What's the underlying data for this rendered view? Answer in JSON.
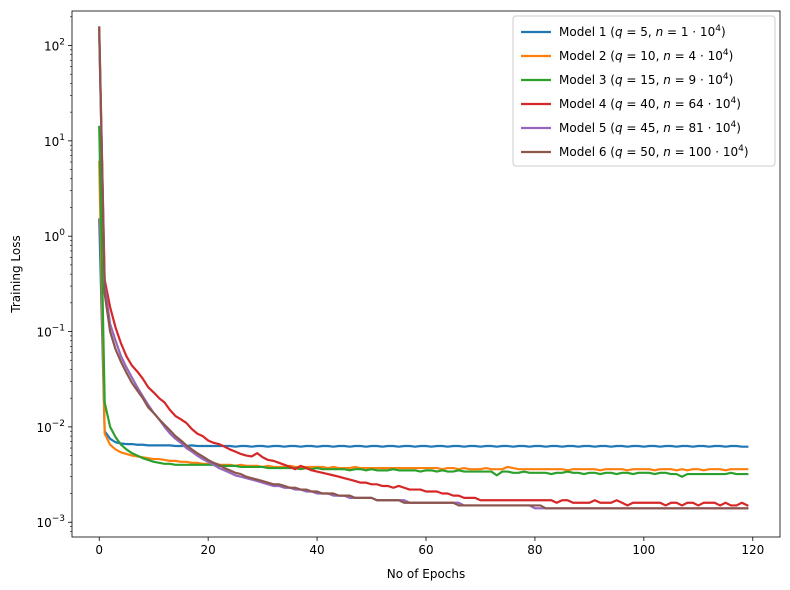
{
  "chart_data": {
    "type": "line",
    "title": "",
    "xlabel": "No of Epochs",
    "ylabel": "Training Loss",
    "yscale": "log",
    "xlim": [
      -5,
      125
    ],
    "ylim": [
      0.0007,
      230
    ],
    "x_ticks": [
      0,
      20,
      40,
      60,
      80,
      100,
      120
    ],
    "y_ticks": [
      {
        "value": 0.001,
        "base": "10",
        "exp": "−3"
      },
      {
        "value": 0.01,
        "base": "10",
        "exp": "−2"
      },
      {
        "value": 0.1,
        "base": "10",
        "exp": "−1"
      },
      {
        "value": 1,
        "base": "10",
        "exp": "0"
      },
      {
        "value": 10,
        "base": "10",
        "exp": "1"
      },
      {
        "value": 100,
        "base": "10",
        "exp": "2"
      }
    ],
    "legend_position": "top-right",
    "x": [
      0,
      1,
      2,
      3,
      4,
      5,
      6,
      7,
      8,
      9,
      10,
      11,
      12,
      13,
      14,
      15,
      16,
      17,
      18,
      19,
      20,
      21,
      22,
      23,
      24,
      25,
      26,
      27,
      28,
      29,
      30,
      31,
      32,
      33,
      34,
      35,
      36,
      37,
      38,
      39,
      40,
      41,
      42,
      43,
      44,
      45,
      46,
      47,
      48,
      49,
      50,
      51,
      52,
      53,
      54,
      55,
      56,
      57,
      58,
      59,
      60,
      61,
      62,
      63,
      64,
      65,
      66,
      67,
      68,
      69,
      70,
      71,
      72,
      73,
      74,
      75,
      76,
      77,
      78,
      79,
      80,
      81,
      82,
      83,
      84,
      85,
      86,
      87,
      88,
      89,
      90,
      91,
      92,
      93,
      94,
      95,
      96,
      97,
      98,
      99,
      100,
      101,
      102,
      103,
      104,
      105,
      106,
      107,
      108,
      109,
      110,
      111,
      112,
      113,
      114,
      115,
      116,
      117,
      118,
      119
    ],
    "series": [
      {
        "name": "Model 1",
        "legend": {
          "prefix": "Model 1 (",
          "q": "5",
          "n": "1",
          "exp": "4"
        },
        "color": "#1f77b4",
        "values": [
          1.5,
          0.009,
          0.0075,
          0.0069,
          0.0067,
          0.0066,
          0.0066,
          0.0065,
          0.0065,
          0.0064,
          0.0064,
          0.0064,
          0.0064,
          0.0064,
          0.0063,
          0.0063,
          0.0063,
          0.0064,
          0.0063,
          0.0063,
          0.0063,
          0.0063,
          0.0063,
          0.0063,
          0.0063,
          0.0062,
          0.0063,
          0.0063,
          0.0062,
          0.0063,
          0.0063,
          0.0062,
          0.0063,
          0.0063,
          0.0062,
          0.0063,
          0.0063,
          0.0062,
          0.0063,
          0.0063,
          0.0062,
          0.0063,
          0.0063,
          0.0062,
          0.0063,
          0.0063,
          0.0062,
          0.0063,
          0.0063,
          0.0062,
          0.0063,
          0.0063,
          0.0062,
          0.0063,
          0.0063,
          0.0062,
          0.0063,
          0.0063,
          0.0062,
          0.0063,
          0.0063,
          0.0062,
          0.0063,
          0.0063,
          0.0062,
          0.0063,
          0.0063,
          0.0062,
          0.0063,
          0.0063,
          0.0062,
          0.0063,
          0.0063,
          0.0062,
          0.0063,
          0.0063,
          0.0062,
          0.0063,
          0.0063,
          0.0062,
          0.0063,
          0.0063,
          0.0062,
          0.0063,
          0.0063,
          0.0062,
          0.0063,
          0.0063,
          0.0062,
          0.0063,
          0.0063,
          0.0062,
          0.0063,
          0.0063,
          0.0062,
          0.0063,
          0.0063,
          0.0062,
          0.0063,
          0.0063,
          0.0062,
          0.0063,
          0.0063,
          0.0062,
          0.0063,
          0.0063,
          0.0062,
          0.0063,
          0.0063,
          0.0062,
          0.0063,
          0.0063,
          0.0062,
          0.0063,
          0.0063,
          0.0062,
          0.0063,
          0.0063,
          0.0062,
          0.0062
        ]
      },
      {
        "name": "Model 2",
        "legend": {
          "prefix": "Model 2 (",
          "q": "10",
          "n": "4",
          "exp": "4"
        },
        "color": "#ff7f0e",
        "values": [
          6.0,
          0.0085,
          0.0065,
          0.0058,
          0.0054,
          0.0052,
          0.005,
          0.0049,
          0.0048,
          0.0047,
          0.0046,
          0.0046,
          0.0045,
          0.0044,
          0.0044,
          0.0043,
          0.0043,
          0.0042,
          0.0042,
          0.0041,
          0.0041,
          0.0041,
          0.004,
          0.004,
          0.004,
          0.0039,
          0.004,
          0.0039,
          0.0039,
          0.0039,
          0.0038,
          0.0039,
          0.0038,
          0.0038,
          0.0038,
          0.0039,
          0.0038,
          0.0038,
          0.0038,
          0.0038,
          0.0038,
          0.0038,
          0.0037,
          0.0038,
          0.0037,
          0.0037,
          0.0037,
          0.0038,
          0.0037,
          0.0037,
          0.0037,
          0.0037,
          0.0037,
          0.0037,
          0.0037,
          0.0037,
          0.0037,
          0.0037,
          0.0037,
          0.0037,
          0.0037,
          0.0037,
          0.0037,
          0.0036,
          0.0037,
          0.0037,
          0.0036,
          0.0037,
          0.0036,
          0.0036,
          0.0036,
          0.0037,
          0.0036,
          0.0036,
          0.0036,
          0.0038,
          0.0037,
          0.0036,
          0.0036,
          0.0036,
          0.0036,
          0.0036,
          0.0036,
          0.0036,
          0.0036,
          0.0036,
          0.0035,
          0.0036,
          0.0036,
          0.0036,
          0.0036,
          0.0036,
          0.0035,
          0.0036,
          0.0036,
          0.0036,
          0.0036,
          0.0035,
          0.0036,
          0.0036,
          0.0036,
          0.0036,
          0.0035,
          0.0036,
          0.0036,
          0.0036,
          0.0035,
          0.0036,
          0.0035,
          0.0036,
          0.0036,
          0.0035,
          0.0036,
          0.0036,
          0.0036,
          0.0035,
          0.0036,
          0.0036,
          0.0036,
          0.0036
        ]
      },
      {
        "name": "Model 3",
        "legend": {
          "prefix": "Model 3 (",
          "q": "15",
          "n": "9",
          "exp": "4"
        },
        "color": "#2ca02c",
        "values": [
          14.0,
          0.018,
          0.01,
          0.0078,
          0.0065,
          0.0058,
          0.0053,
          0.005,
          0.0047,
          0.0045,
          0.0043,
          0.0042,
          0.0041,
          0.0041,
          0.004,
          0.004,
          0.004,
          0.004,
          0.004,
          0.004,
          0.004,
          0.004,
          0.0039,
          0.0039,
          0.0039,
          0.0039,
          0.0038,
          0.0038,
          0.0038,
          0.0038,
          0.0038,
          0.0037,
          0.0037,
          0.0037,
          0.0037,
          0.0037,
          0.0037,
          0.0036,
          0.0037,
          0.0036,
          0.0037,
          0.0036,
          0.0036,
          0.0036,
          0.0036,
          0.0036,
          0.0035,
          0.0036,
          0.0036,
          0.0035,
          0.0036,
          0.0035,
          0.0035,
          0.0035,
          0.0036,
          0.0035,
          0.0035,
          0.0035,
          0.0035,
          0.0034,
          0.0035,
          0.0035,
          0.0034,
          0.0035,
          0.0034,
          0.0034,
          0.0035,
          0.0034,
          0.0034,
          0.0034,
          0.0034,
          0.0034,
          0.0034,
          0.0031,
          0.0034,
          0.0034,
          0.0033,
          0.0033,
          0.0034,
          0.0033,
          0.0033,
          0.0033,
          0.0033,
          0.0032,
          0.0033,
          0.0033,
          0.0034,
          0.0033,
          0.0033,
          0.0032,
          0.0033,
          0.0033,
          0.0032,
          0.0033,
          0.0033,
          0.0032,
          0.0033,
          0.0033,
          0.0032,
          0.0033,
          0.0033,
          0.0033,
          0.0032,
          0.0033,
          0.0033,
          0.0032,
          0.0032,
          0.003,
          0.0032,
          0.0032,
          0.0032,
          0.0032,
          0.0032,
          0.0032,
          0.0032,
          0.0032,
          0.0033,
          0.0032,
          0.0032,
          0.0032
        ]
      },
      {
        "name": "Model 4",
        "legend": {
          "prefix": "Model 4 (",
          "q": "40",
          "n": "64",
          "exp": "4"
        },
        "color": "#d62728",
        "values": [
          150,
          0.35,
          0.18,
          0.11,
          0.075,
          0.055,
          0.044,
          0.038,
          0.032,
          0.026,
          0.023,
          0.02,
          0.018,
          0.015,
          0.013,
          0.012,
          0.011,
          0.0095,
          0.0085,
          0.008,
          0.0072,
          0.0068,
          0.0066,
          0.0062,
          0.0058,
          0.0055,
          0.0052,
          0.005,
          0.0049,
          0.0053,
          0.0048,
          0.0045,
          0.0044,
          0.0042,
          0.004,
          0.0038,
          0.0036,
          0.0039,
          0.0037,
          0.0035,
          0.0034,
          0.0033,
          0.0032,
          0.0031,
          0.003,
          0.0029,
          0.0028,
          0.0027,
          0.0026,
          0.0026,
          0.0025,
          0.0025,
          0.0024,
          0.0024,
          0.0023,
          0.0024,
          0.0023,
          0.0022,
          0.0022,
          0.0022,
          0.0021,
          0.0021,
          0.0021,
          0.002,
          0.002,
          0.0019,
          0.0019,
          0.0018,
          0.0018,
          0.0018,
          0.0017,
          0.0017,
          0.0017,
          0.0017,
          0.0017,
          0.0017,
          0.0017,
          0.0017,
          0.0017,
          0.0017,
          0.0017,
          0.0017,
          0.0017,
          0.0017,
          0.0016,
          0.0017,
          0.0017,
          0.0016,
          0.0016,
          0.0016,
          0.0016,
          0.0017,
          0.0016,
          0.0016,
          0.0016,
          0.0017,
          0.0016,
          0.0015,
          0.0016,
          0.0016,
          0.0016,
          0.0016,
          0.0016,
          0.0016,
          0.0015,
          0.0016,
          0.0016,
          0.0015,
          0.0016,
          0.0016,
          0.0015,
          0.0016,
          0.0016,
          0.0016,
          0.0015,
          0.0016,
          0.0015,
          0.0015,
          0.0016,
          0.0015
        ]
      },
      {
        "name": "Model 5",
        "legend": {
          "prefix": "Model 5 (",
          "q": "45",
          "n": "81",
          "exp": "4"
        },
        "color": "#9467bd",
        "values": [
          130,
          0.3,
          0.12,
          0.08,
          0.055,
          0.042,
          0.033,
          0.026,
          0.021,
          0.017,
          0.014,
          0.012,
          0.01,
          0.0085,
          0.0075,
          0.0068,
          0.006,
          0.0055,
          0.005,
          0.0046,
          0.0043,
          0.004,
          0.0037,
          0.0035,
          0.0033,
          0.0031,
          0.003,
          0.0029,
          0.0028,
          0.0027,
          0.0026,
          0.0025,
          0.0024,
          0.0024,
          0.0023,
          0.0023,
          0.0022,
          0.0022,
          0.0021,
          0.0021,
          0.002,
          0.002,
          0.002,
          0.0019,
          0.0019,
          0.0019,
          0.0018,
          0.0018,
          0.0018,
          0.0018,
          0.0018,
          0.0017,
          0.0017,
          0.0017,
          0.0017,
          0.0017,
          0.0017,
          0.0016,
          0.0016,
          0.0016,
          0.0016,
          0.0016,
          0.0016,
          0.0016,
          0.0016,
          0.0016,
          0.0016,
          0.0015,
          0.0015,
          0.0015,
          0.0015,
          0.0015,
          0.0015,
          0.0015,
          0.0015,
          0.0015,
          0.0015,
          0.0015,
          0.0015,
          0.0015,
          0.0014,
          0.0014,
          0.0014,
          0.0014,
          0.0014,
          0.0014,
          0.0014,
          0.0014,
          0.0014,
          0.0014,
          0.0014,
          0.0014,
          0.0014,
          0.0014,
          0.0014,
          0.0014,
          0.0014,
          0.0014,
          0.0014,
          0.0014,
          0.0014,
          0.0014,
          0.0014,
          0.0014,
          0.0014,
          0.0014,
          0.0014,
          0.0014,
          0.0014,
          0.0014,
          0.0014,
          0.0014,
          0.0014,
          0.0014,
          0.0014,
          0.0014,
          0.0014,
          0.0014,
          0.0014,
          0.0014
        ]
      },
      {
        "name": "Model 6",
        "legend": {
          "prefix": "Model 6 (",
          "q": "50",
          "n": "100",
          "exp": "4"
        },
        "color": "#8c564b",
        "values": [
          155,
          0.25,
          0.1,
          0.065,
          0.048,
          0.037,
          0.029,
          0.024,
          0.02,
          0.016,
          0.014,
          0.012,
          0.0105,
          0.0092,
          0.008,
          0.0072,
          0.0064,
          0.0058,
          0.0053,
          0.0049,
          0.0045,
          0.0042,
          0.004,
          0.0037,
          0.0035,
          0.0033,
          0.0032,
          0.003,
          0.0029,
          0.0028,
          0.0027,
          0.0026,
          0.0025,
          0.0025,
          0.0024,
          0.0023,
          0.0023,
          0.0022,
          0.0022,
          0.0021,
          0.0021,
          0.002,
          0.002,
          0.002,
          0.0019,
          0.0019,
          0.0019,
          0.0018,
          0.0018,
          0.0018,
          0.0018,
          0.0017,
          0.0017,
          0.0017,
          0.0017,
          0.0017,
          0.0016,
          0.0016,
          0.0016,
          0.0016,
          0.0016,
          0.0016,
          0.0016,
          0.0016,
          0.0016,
          0.0016,
          0.0015,
          0.0015,
          0.0015,
          0.0015,
          0.0015,
          0.0015,
          0.0015,
          0.0015,
          0.0015,
          0.0015,
          0.0015,
          0.0015,
          0.0015,
          0.0015,
          0.0015,
          0.0015,
          0.0014,
          0.0014,
          0.0014,
          0.0014,
          0.0014,
          0.0014,
          0.0014,
          0.0014,
          0.0014,
          0.0014,
          0.0014,
          0.0014,
          0.0014,
          0.0014,
          0.0014,
          0.0014,
          0.0014,
          0.0014,
          0.0014,
          0.0014,
          0.0014,
          0.0014,
          0.0014,
          0.0014,
          0.0014,
          0.0014,
          0.0014,
          0.0014,
          0.0014,
          0.0014,
          0.0014,
          0.0014,
          0.0014,
          0.0014,
          0.0014,
          0.0014,
          0.0014,
          0.0014
        ]
      }
    ]
  }
}
